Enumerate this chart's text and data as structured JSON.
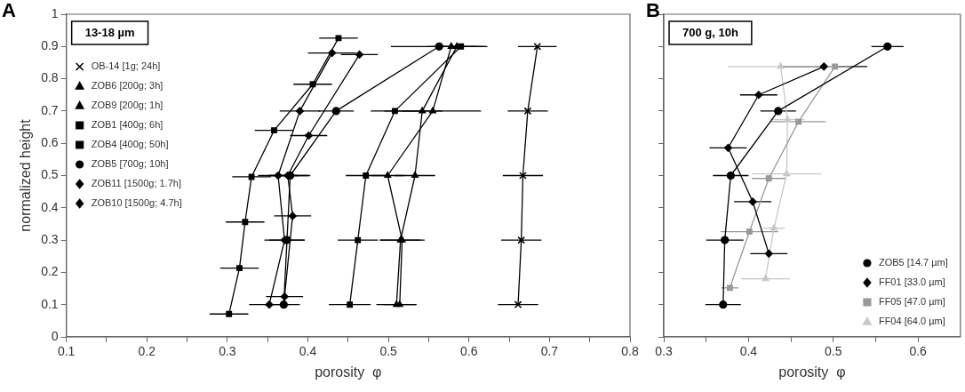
{
  "chart_data": [
    {
      "type": "line",
      "title": "A",
      "xlabel": "porosity  φ",
      "ylabel": "normalized height",
      "annotations": [
        "13-18 µm"
      ],
      "xlim": [
        0.1,
        0.8
      ],
      "xticks": [
        0.1,
        {
          "value": 0.15,
          "label": null
        },
        0.2,
        {
          "value": 0.25,
          "label": null
        },
        0.3,
        {
          "value": 0.35,
          "label": null
        },
        0.4,
        {
          "value": 0.45,
          "label": null
        },
        0.5,
        {
          "value": 0.55,
          "label": null
        },
        0.6,
        {
          "value": 0.65,
          "label": null
        },
        0.7,
        {
          "value": 0.75,
          "label": null
        },
        0.8
      ],
      "ylim": [
        0,
        1
      ],
      "yticks": [
        0,
        0.1,
        0.2,
        0.3,
        0.4,
        0.5,
        0.6,
        0.7,
        0.8,
        0.9,
        1
      ],
      "grid": false,
      "legend": "top left",
      "series": [
        {
          "name": "OB-14 [1g; 24h]",
          "color": "#000000",
          "marker": "cross",
          "x": [
            0.685,
            0.673,
            0.667,
            0.665,
            0.661
          ],
          "values": [
            0.9,
            0.7,
            0.5,
            0.3,
            0.1
          ],
          "xerrors": [
            0.024,
            0.025,
            0.025,
            0.025,
            0.025
          ]
        },
        {
          "name": "ZOB6 [200g; 3h]",
          "color": "#000000",
          "marker": "triangle",
          "x": [
            0.585,
            0.542,
            0.533,
            0.515,
            0.51
          ],
          "values": [
            0.9,
            0.7,
            0.5,
            0.3,
            0.1
          ],
          "xerrors": [
            0.03,
            0.025,
            0.025,
            0.025,
            0.025
          ]
        },
        {
          "name": "ZOB9 [200g; 1h]",
          "color": "#000000",
          "marker": "triangle",
          "x": [
            0.578,
            0.555,
            0.499,
            0.517,
            0.514
          ],
          "values": [
            0.9,
            0.7,
            0.5,
            0.3,
            0.1
          ],
          "xerrors": [
            0.03,
            0.06,
            0.02,
            0.028,
            0.02
          ]
        },
        {
          "name": "ZOB1 [400g; 6h]",
          "color": "#000000",
          "marker": "square",
          "x": [
            0.59,
            0.508,
            0.472,
            0.462,
            0.452
          ],
          "values": [
            0.9,
            0.7,
            0.5,
            0.3,
            0.1
          ],
          "xerrors": [
            0.03,
            0.03,
            0.025,
            0.025,
            0.026
          ]
        },
        {
          "name": "ZOB4 [400g; 50h]",
          "color": "#000000",
          "marker": "square",
          "x": [
            0.438,
            0.406,
            0.358,
            0.33,
            0.322,
            0.315,
            0.302
          ],
          "values": [
            0.926,
            0.783,
            0.64,
            0.496,
            0.356,
            0.213,
            0.071
          ],
          "xerrors": [
            0.024,
            0.024,
            0.024,
            0.024,
            0.024,
            0.024,
            0.024
          ]
        },
        {
          "name": "ZOB5 [700g; 10h]",
          "color": "#000000",
          "marker": "circle",
          "x": [
            0.563,
            0.435,
            0.378,
            0.374,
            0.37
          ],
          "values": [
            0.9,
            0.7,
            0.5,
            0.3,
            0.1
          ],
          "xerrors": [
            0.06,
            0.022,
            0.025,
            0.022,
            0.02
          ]
        },
        {
          "name": "ZOB11 [1500g; 1.7h]",
          "color": "#000000",
          "marker": "diamond",
          "x": [
            0.43,
            0.39,
            0.363,
            0.371,
            0.352
          ],
          "values": [
            0.88,
            0.7,
            0.5,
            0.3,
            0.1
          ],
          "xerrors": [
            0.03,
            0.025,
            0.025,
            0.025,
            0.025
          ]
        },
        {
          "name": "ZOB10 [1500g; 4.7h]",
          "color": "#000000",
          "marker": "diamond",
          "x": [
            0.464,
            0.401,
            0.375,
            0.381,
            0.371
          ],
          "values": [
            0.875,
            0.624,
            0.5,
            0.375,
            0.125
          ],
          "xerrors": [
            0.023,
            0.023,
            0.025,
            0.023,
            0.023
          ]
        }
      ]
    },
    {
      "type": "line",
      "title": "B",
      "xlabel": "porosity  φ",
      "annotations": [
        "700 g, 10h"
      ],
      "xlim": [
        0.3,
        0.65
      ],
      "xticks": [
        0.3,
        {
          "value": 0.35,
          "label": null
        },
        0.4,
        {
          "value": 0.45,
          "label": null
        },
        0.5,
        {
          "value": 0.55,
          "label": null
        },
        0.6
      ],
      "ylim": [
        0,
        1
      ],
      "yticks": [
        0,
        0.1,
        0.2,
        0.3,
        0.4,
        0.5,
        0.6,
        0.7,
        0.8,
        0.9,
        1
      ],
      "tick_labels": "x",
      "grid": false,
      "legend": "bottom right",
      "series": [
        {
          "name": "ZOB5 [14.7 µm]",
          "color": "#000000",
          "marker": "circle",
          "x": [
            0.564,
            0.435,
            0.379,
            0.372,
            0.37
          ],
          "values": [
            0.9,
            0.7,
            0.5,
            0.3,
            0.1
          ],
          "xerrors": [
            0.019,
            0.021,
            0.021,
            0.022,
            0.021
          ]
        },
        {
          "name": "FF01 [33.0 µm]",
          "color": "#000000",
          "marker": "diamond",
          "x": [
            0.489,
            0.412,
            0.376,
            0.405,
            0.424
          ],
          "values": [
            0.838,
            0.75,
            0.586,
            0.419,
            0.258
          ],
          "xerrors": [
            0.051,
            0.022,
            0.022,
            0.022,
            0.022
          ]
        },
        {
          "name": "FF05 [47.0 µm]",
          "color": "#999999",
          "marker": "square",
          "x": [
            0.502,
            0.459,
            0.424,
            0.401,
            0.378
          ],
          "values": [
            0.838,
            0.667,
            0.491,
            0.326,
            0.152
          ],
          "xerrors": [
            0.02,
            0.032,
            0.02,
            0.034,
            0.01
          ]
        },
        {
          "name": "FF04 [64.0 µm]",
          "color": "#c8c8c8",
          "marker": "triangle",
          "x": [
            0.438,
            0.446,
            0.445,
            0.43,
            0.42
          ],
          "values": [
            0.838,
            0.673,
            0.505,
            0.337,
            0.18
          ],
          "xerrors": [
            0.062,
            0.02,
            0.041,
            0.013,
            0.029
          ]
        }
      ]
    }
  ]
}
